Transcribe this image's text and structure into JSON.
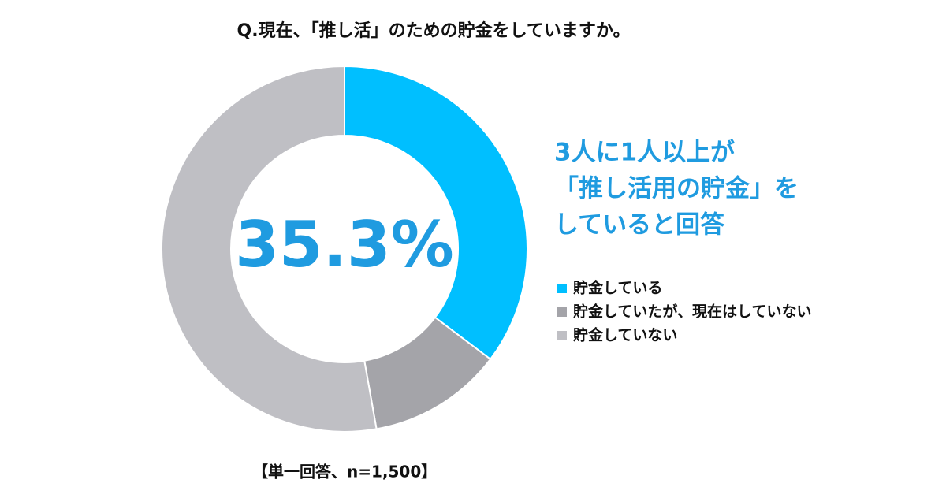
{
  "chart_data": {
    "type": "donut",
    "title": "Q.現在、「推し活」のための貯金をしていますか。",
    "categories": [
      "貯金している",
      "貯金していたが、現在はしていない",
      "貯金していない"
    ],
    "values": [
      35.3,
      11.9,
      52.8
    ],
    "colors": [
      "#00bfff",
      "#a4a4a9",
      "#bfbfc4"
    ],
    "center_label": "35.3%",
    "annotation": [
      "3人に1人以上が",
      "「推し活用の貯金」を",
      "していると回答"
    ],
    "note": "【単一回答、n=1,500】"
  }
}
